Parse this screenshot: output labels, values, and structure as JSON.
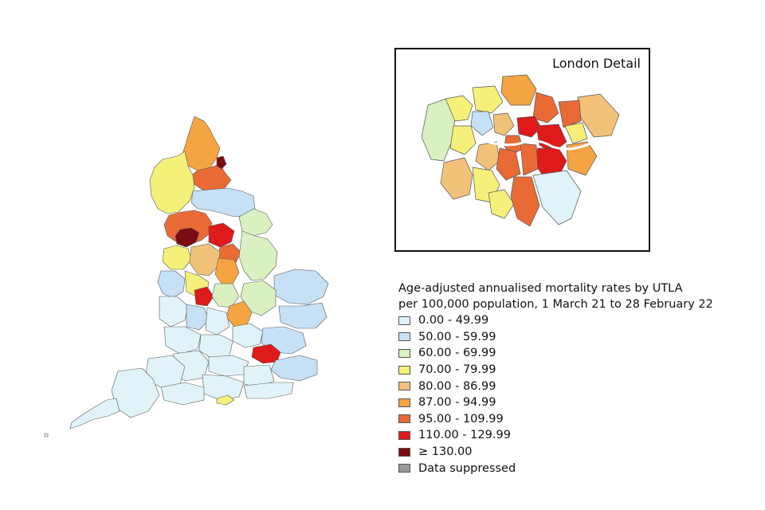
{
  "london_inset": {
    "title": "London Detail"
  },
  "legend": {
    "title_line1": "Age-adjusted annualised mortality rates by UTLA",
    "title_line2": "per 100,000 population, 1 March 21 to 28 February 22",
    "items": [
      {
        "label": "0.00 - 49.99",
        "color": "#e0f3f8"
      },
      {
        "label": "50.00 - 59.99",
        "color": "#c6e0f5"
      },
      {
        "label": "60.00 - 69.99",
        "color": "#d9f0c0"
      },
      {
        "label": "70.00 - 79.99",
        "color": "#f5f07a"
      },
      {
        "label": "80.00 - 86.99",
        "color": "#f3c27a"
      },
      {
        "label": "87.00 - 94.99",
        "color": "#f4a442"
      },
      {
        "label": "95.00 - 109.99",
        "color": "#ea6a36"
      },
      {
        "label": "110.00 - 129.99",
        "color": "#de1a1a"
      },
      {
        "label": "≥ 130.00",
        "color": "#7a0c12"
      },
      {
        "label": "Data suppressed",
        "color": "#9a9a9a"
      }
    ]
  }
}
